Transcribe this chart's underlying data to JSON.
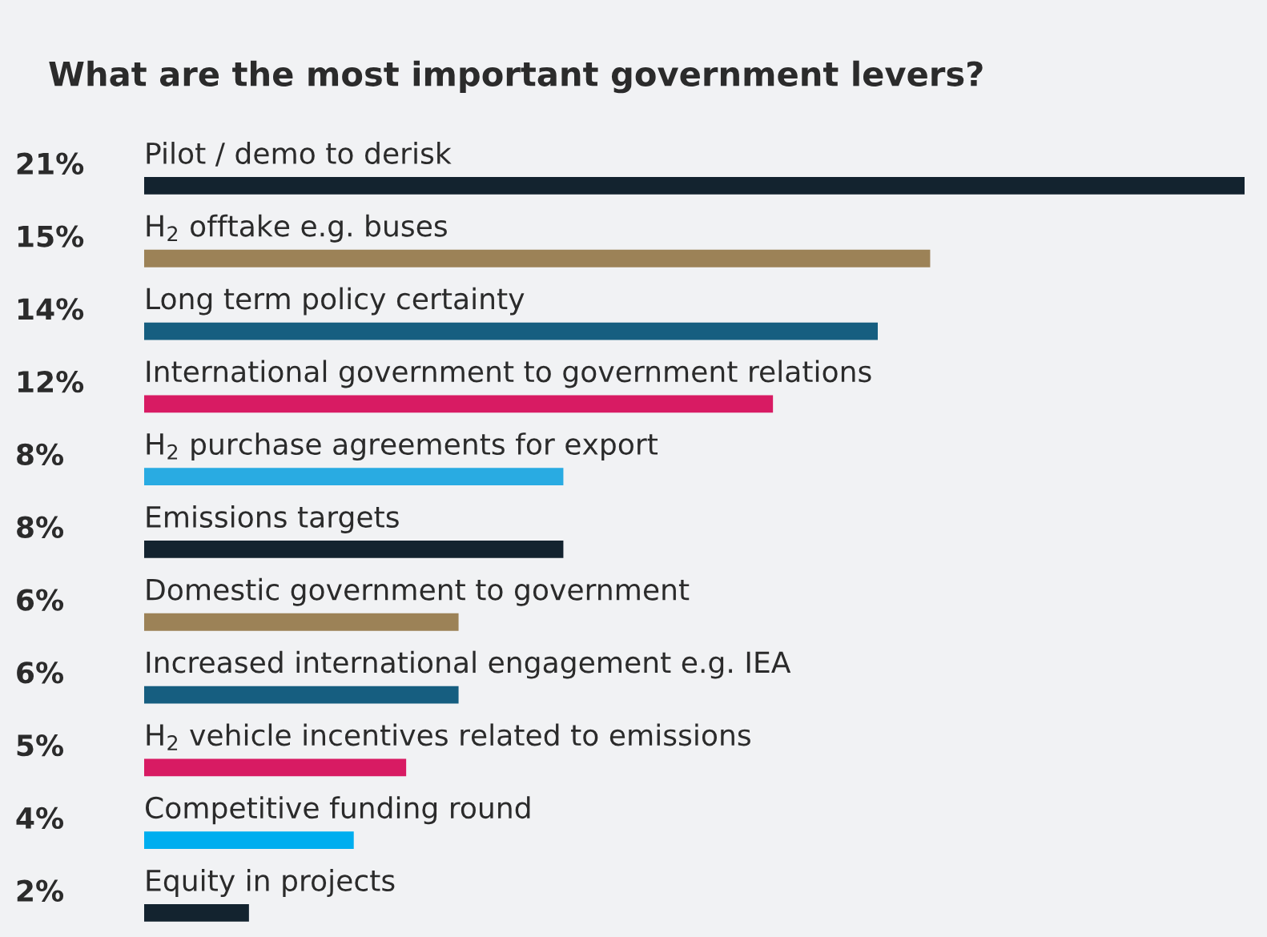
{
  "chart_data": {
    "type": "bar",
    "orientation": "horizontal",
    "title": "What are the most important government levers?",
    "categories": [
      "Pilot / demo to derisk",
      "H$_{2}$ offtake e.g. buses",
      "Long term policy certainty",
      "International government to government relations",
      "H$_{2}$ purchase agreements for export",
      "Emissions targets",
      "Domestic government to government",
      "Increased international engagement e.g. IEA",
      "H$_{2}$ vehicle incentives related to emissions",
      "Competitive funding round",
      "Equity in projects"
    ],
    "values": [
      21,
      15,
      14,
      12,
      8,
      8,
      6,
      6,
      5,
      4,
      2
    ],
    "value_labels": [
      "21%",
      "15%",
      "14%",
      "12%",
      "8%",
      "8%",
      "6%",
      "6%",
      "5%",
      "4%",
      "2%"
    ],
    "colors": [
      "#13232f",
      "#9c8257",
      "#165e80",
      "#d81b63",
      "#29abe2",
      "#13232f",
      "#9c8257",
      "#165e80",
      "#d81b63",
      "#00aeef",
      "#13232f"
    ],
    "stacked": false
  }
}
